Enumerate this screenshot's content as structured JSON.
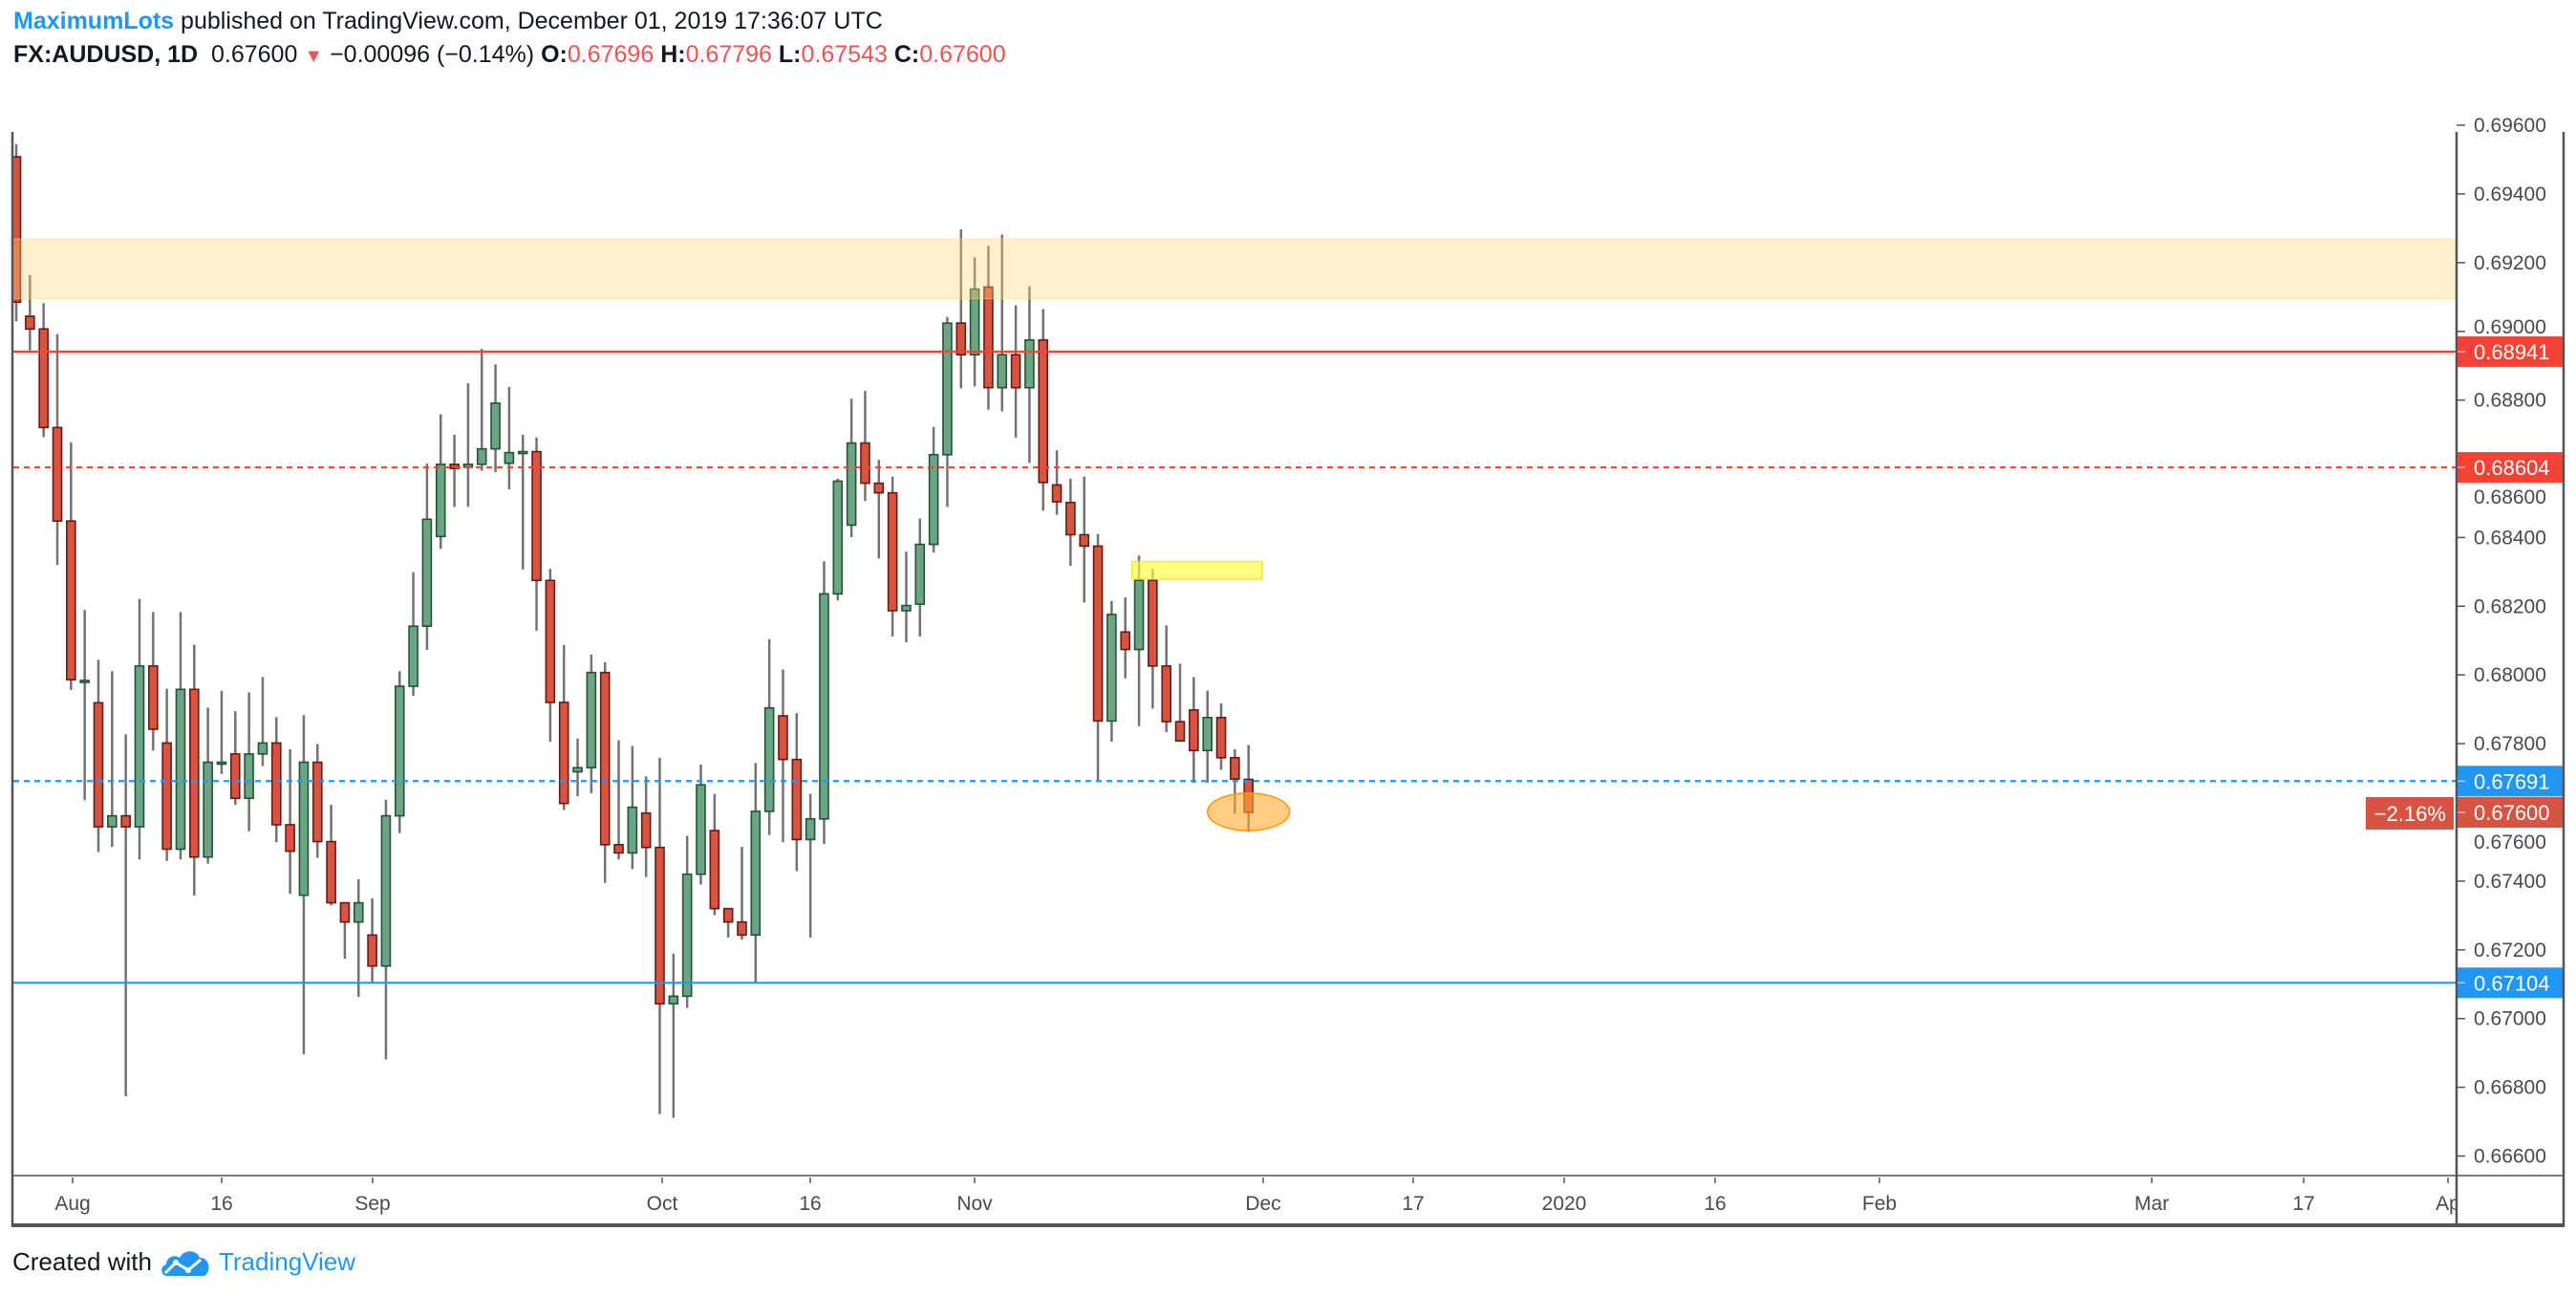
{
  "header": {
    "author": "MaximumLots",
    "published": "published on TradingView.com, December 01, 2019 17:36:07 UTC",
    "symbol": "FX:AUDUSD, 1D",
    "last": "0.67600",
    "change": "−0.00096 (−0.14%)",
    "o_label": "O:",
    "o": "0.67696",
    "h_label": "H:",
    "h": "0.67796",
    "l_label": "L:",
    "l": "0.67543",
    "c_label": "C:",
    "c": "0.67600",
    "direction_icon": "triangle-down-icon"
  },
  "footer": {
    "created_with": "Created with",
    "brand": "TradingView",
    "logo_icon": "tradingview-cloud-icon"
  },
  "colors": {
    "up": "#6ba583",
    "down": "#d75442",
    "resistance": "#f44336",
    "support": "#2196f3",
    "zone": "#ffe7a8",
    "highlight": "#ffff3c",
    "ellipse": "#ffb74d"
  },
  "chart_data": {
    "type": "candlestick",
    "symbol": "FX:AUDUSD",
    "interval": "1D",
    "ylim": [
      0.6655,
      0.6972
    ],
    "y_ticks": [
      "0.69600",
      "0.69400",
      "0.69200",
      "0.69000",
      "0.68800",
      "0.68600",
      "0.68400",
      "0.68200",
      "0.68000",
      "0.67800",
      "0.67600",
      "0.67400",
      "0.67200",
      "0.67000",
      "0.66800",
      "0.66600"
    ],
    "x_ticks": [
      "Aug",
      "16",
      "Sep",
      "Oct",
      "16",
      "Nov",
      "Dec",
      "17",
      "2020",
      "16",
      "Feb",
      "Mar",
      "17",
      "Ap"
    ],
    "ohlc": [
      [
        0.69508,
        0.69545,
        0.69029,
        0.69085
      ],
      [
        0.69044,
        0.69164,
        0.68945,
        0.69007
      ],
      [
        0.69007,
        0.69082,
        0.68692,
        0.6872
      ],
      [
        0.6872,
        0.68992,
        0.6832,
        0.68448
      ],
      [
        0.68448,
        0.68677,
        0.67956,
        0.67986
      ],
      [
        0.67984,
        0.68189,
        0.67635,
        0.67984
      ],
      [
        0.67919,
        0.68044,
        0.67485,
        0.67558
      ],
      [
        0.67558,
        0.68011,
        0.675,
        0.6759
      ],
      [
        0.6759,
        0.67827,
        0.66774,
        0.67558
      ],
      [
        0.67558,
        0.68221,
        0.67463,
        0.68026
      ],
      [
        0.68026,
        0.68183,
        0.6778,
        0.67842
      ],
      [
        0.67802,
        0.6796,
        0.67459,
        0.67493
      ],
      [
        0.67493,
        0.68183,
        0.67463,
        0.67958
      ],
      [
        0.67958,
        0.68088,
        0.67358,
        0.6747
      ],
      [
        0.6747,
        0.67905,
        0.67451,
        0.67746
      ],
      [
        0.67746,
        0.67954,
        0.67712,
        0.67746
      ],
      [
        0.6777,
        0.67894,
        0.67622,
        0.67641
      ],
      [
        0.67641,
        0.67949,
        0.67545,
        0.6777
      ],
      [
        0.6777,
        0.67994,
        0.67735,
        0.67802
      ],
      [
        0.67802,
        0.67877,
        0.67513,
        0.67564
      ],
      [
        0.67564,
        0.67784,
        0.67363,
        0.67487
      ],
      [
        0.67359,
        0.67883,
        0.66896,
        0.67746
      ],
      [
        0.67746,
        0.67799,
        0.67468,
        0.67515
      ],
      [
        0.67515,
        0.67622,
        0.67329,
        0.67337
      ],
      [
        0.67337,
        0.67337,
        0.67174,
        0.67281
      ],
      [
        0.67281,
        0.67405,
        0.67063,
        0.67337
      ],
      [
        0.67243,
        0.6735,
        0.67106,
        0.67153
      ],
      [
        0.67153,
        0.67637,
        0.66881,
        0.6759
      ],
      [
        0.6759,
        0.68011,
        0.6754,
        0.67967
      ],
      [
        0.67967,
        0.68299,
        0.67939,
        0.68142
      ],
      [
        0.68142,
        0.68615,
        0.68073,
        0.68453
      ],
      [
        0.68403,
        0.68759,
        0.68367,
        0.68613
      ],
      [
        0.68613,
        0.68699,
        0.68489,
        0.68601
      ],
      [
        0.68605,
        0.68849,
        0.68489,
        0.68613
      ],
      [
        0.68613,
        0.68949,
        0.68594,
        0.68658
      ],
      [
        0.68658,
        0.68904,
        0.6859,
        0.68791
      ],
      [
        0.68616,
        0.68838,
        0.6854,
        0.68647
      ],
      [
        0.6865,
        0.68699,
        0.68307,
        0.6865
      ],
      [
        0.6865,
        0.68691,
        0.68129,
        0.68275
      ],
      [
        0.68275,
        0.68309,
        0.67806,
        0.6792
      ],
      [
        0.6792,
        0.68087,
        0.67607,
        0.67626
      ],
      [
        0.67718,
        0.67815,
        0.67647,
        0.6773
      ],
      [
        0.6773,
        0.68059,
        0.67656,
        0.68007
      ],
      [
        0.68007,
        0.68037,
        0.67395,
        0.67506
      ],
      [
        0.67506,
        0.6781,
        0.67463,
        0.67482
      ],
      [
        0.67482,
        0.67793,
        0.67435,
        0.67615
      ],
      [
        0.67598,
        0.67705,
        0.67412,
        0.67498
      ],
      [
        0.67498,
        0.67759,
        0.66722,
        0.67043
      ],
      [
        0.67043,
        0.67189,
        0.66711,
        0.67065
      ],
      [
        0.67065,
        0.67532,
        0.67031,
        0.6742
      ],
      [
        0.6742,
        0.67739,
        0.6739,
        0.6768
      ],
      [
        0.67547,
        0.67654,
        0.67301,
        0.6732
      ],
      [
        0.6732,
        0.6732,
        0.67236,
        0.67281
      ],
      [
        0.67281,
        0.675,
        0.6723,
        0.67243
      ],
      [
        0.67243,
        0.67744,
        0.67104,
        0.67603
      ],
      [
        0.67603,
        0.68104,
        0.67534,
        0.67904
      ],
      [
        0.67881,
        0.68016,
        0.67513,
        0.67754
      ],
      [
        0.67754,
        0.67889,
        0.67429,
        0.67521
      ],
      [
        0.67521,
        0.67654,
        0.67236,
        0.67581
      ],
      [
        0.67581,
        0.68331,
        0.67508,
        0.68236
      ],
      [
        0.68236,
        0.68571,
        0.68217,
        0.68564
      ],
      [
        0.68436,
        0.68804,
        0.68401,
        0.68675
      ],
      [
        0.68675,
        0.68827,
        0.68506,
        0.68558
      ],
      [
        0.68558,
        0.68626,
        0.68339,
        0.6853
      ],
      [
        0.6853,
        0.68577,
        0.68112,
        0.68187
      ],
      [
        0.68187,
        0.68359,
        0.68095,
        0.68202
      ],
      [
        0.68206,
        0.68455,
        0.68112,
        0.6838
      ],
      [
        0.6838,
        0.68722,
        0.68356,
        0.68641
      ],
      [
        0.68641,
        0.69042,
        0.68489,
        0.69024
      ],
      [
        0.69024,
        0.69297,
        0.68834,
        0.68932
      ],
      [
        0.68932,
        0.69215,
        0.6884,
        0.69123
      ],
      [
        0.69129,
        0.69249,
        0.68772,
        0.68836
      ],
      [
        0.68836,
        0.69281,
        0.68767,
        0.68932
      ],
      [
        0.68932,
        0.69076,
        0.6869,
        0.68836
      ],
      [
        0.68836,
        0.69131,
        0.68617,
        0.68975
      ],
      [
        0.68975,
        0.69065,
        0.68478,
        0.6856
      ],
      [
        0.68553,
        0.68654,
        0.68466,
        0.68504
      ],
      [
        0.68502,
        0.68571,
        0.68318,
        0.68408
      ],
      [
        0.68408,
        0.68577,
        0.68211,
        0.68375
      ],
      [
        0.68375,
        0.6841,
        0.67692,
        0.67866
      ],
      [
        0.67866,
        0.68215,
        0.67806,
        0.68176
      ],
      [
        0.68125,
        0.68226,
        0.6799,
        0.68074
      ],
      [
        0.68074,
        0.68348,
        0.67851,
        0.68275
      ],
      [
        0.68275,
        0.68309,
        0.67902,
        0.68026
      ],
      [
        0.68026,
        0.68144,
        0.67834,
        0.67864
      ],
      [
        0.67864,
        0.68033,
        0.67808,
        0.67808
      ],
      [
        0.67898,
        0.67994,
        0.67686,
        0.6778
      ],
      [
        0.6778,
        0.67954,
        0.67686,
        0.67876
      ],
      [
        0.67876,
        0.67917,
        0.67724,
        0.67759
      ],
      [
        0.67759,
        0.67784,
        0.67596,
        0.67697
      ],
      [
        0.67696,
        0.67796,
        0.67543,
        0.676
      ]
    ],
    "horizontal_lines": [
      {
        "name": "resistance-line",
        "price": 0.68941,
        "label": "0.68941",
        "style": "solid",
        "color": "#f44336"
      },
      {
        "name": "resistance-dashed-line",
        "price": 0.68604,
        "label": "0.68604",
        "style": "dashed",
        "color": "#f44336"
      },
      {
        "name": "support-dashed-line",
        "price": 0.67691,
        "label": "0.67691",
        "style": "dashed",
        "color": "#2196f3"
      },
      {
        "name": "support-line",
        "price": 0.67104,
        "label": "0.67104",
        "style": "solid",
        "color": "#2196f3"
      }
    ],
    "last_price": {
      "label": "0.67600",
      "change_pct": "−2.16%"
    },
    "zone": {
      "from": 0.69095,
      "to": 0.69269
    },
    "highlight_box": {
      "from_bar": 81.5,
      "to_bar": 91,
      "from": 0.68279,
      "to": 0.6833
    },
    "ellipse": {
      "center_bar": 90,
      "from": 0.67547,
      "to": 0.67656
    }
  }
}
